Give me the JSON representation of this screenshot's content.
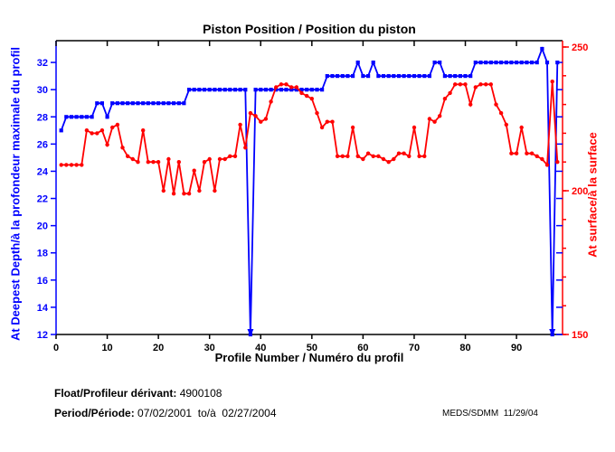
{
  "title": "Piston Position / Position du piston",
  "footer": {
    "float_label": "Float/Profileur dérivant:",
    "float_value": " 4900108",
    "period_label": "Period/Période:",
    "period_value": " 07/02/2001  to/à  02/27/2004",
    "credit": "MEDS/SDMM  11/29/04"
  },
  "colors": {
    "left_axis": "#0000ff",
    "right_axis": "#ff0000",
    "frame": "#000000",
    "background": "#ffffff"
  },
  "chart_data": {
    "type": "line",
    "title": "Piston Position / Position du piston",
    "xlabel": "Profile Number / Numéro du profil",
    "ylabel_left": "At Deepest Depth/à la profondeur maximale du profil",
    "ylabel_right": "At surface/à la surface",
    "grid": false,
    "legend": "none",
    "xlim": [
      0,
      99
    ],
    "ylim_left": [
      12,
      33.6
    ],
    "ylim_right": [
      150,
      252.2
    ],
    "x_ticks": [
      0,
      10,
      20,
      30,
      40,
      50,
      60,
      70,
      80,
      90
    ],
    "y_left_ticks": [
      12,
      14,
      16,
      18,
      20,
      22,
      24,
      26,
      28,
      30,
      32
    ],
    "y_right_ticks_labeled": [
      150,
      200,
      250
    ],
    "y_right_minor_step": 10,
    "x_start": 1,
    "x_step": 1,
    "series": [
      {
        "name": "At Deepest Depth / à la profondeur maximale du profil",
        "axis": "left",
        "color": "#0000ff",
        "marker": "square",
        "clipped_low_arrow_value": 12,
        "values": [
          27,
          28,
          28,
          28,
          28,
          28,
          28,
          29,
          29,
          28,
          29,
          29,
          29,
          29,
          29,
          29,
          29,
          29,
          29,
          29,
          29,
          29,
          29,
          29,
          29,
          30,
          30,
          30,
          30,
          30,
          30,
          30,
          30,
          30,
          30,
          30,
          30,
          12,
          30,
          30,
          30,
          30,
          30,
          30,
          30,
          30,
          30,
          30,
          30,
          30,
          30,
          30,
          31,
          31,
          31,
          31,
          31,
          31,
          32,
          31,
          31,
          32,
          31,
          31,
          31,
          31,
          31,
          31,
          31,
          31,
          31,
          31,
          31,
          32,
          32,
          31,
          31,
          31,
          31,
          31,
          31,
          32,
          32,
          32,
          32,
          32,
          32,
          32,
          32,
          32,
          32,
          32,
          32,
          32,
          33,
          32,
          12,
          32
        ]
      },
      {
        "name": "At surface / à la surface",
        "axis": "right",
        "color": "#ff0000",
        "marker": "circle",
        "values": [
          209,
          209,
          209,
          209,
          209,
          221,
          220,
          220,
          221,
          216,
          222,
          223,
          215,
          212,
          211,
          210,
          221,
          210,
          210,
          210,
          200,
          211,
          199,
          210,
          199,
          199,
          207,
          200,
          210,
          211,
          200,
          211,
          211,
          212,
          212,
          223,
          215,
          227,
          226,
          224,
          225,
          231,
          236,
          237,
          237,
          236,
          236,
          234,
          233,
          232,
          227,
          222,
          224,
          224,
          212,
          212,
          212,
          222,
          212,
          211,
          213,
          212,
          212,
          211,
          210,
          211,
          213,
          213,
          212,
          222,
          212,
          212,
          225,
          224,
          226,
          232,
          234,
          237,
          237,
          237,
          230,
          236,
          237,
          237,
          237,
          230,
          227,
          223,
          213,
          213,
          222,
          213,
          213,
          212,
          211,
          209,
          238,
          210
        ]
      }
    ]
  }
}
